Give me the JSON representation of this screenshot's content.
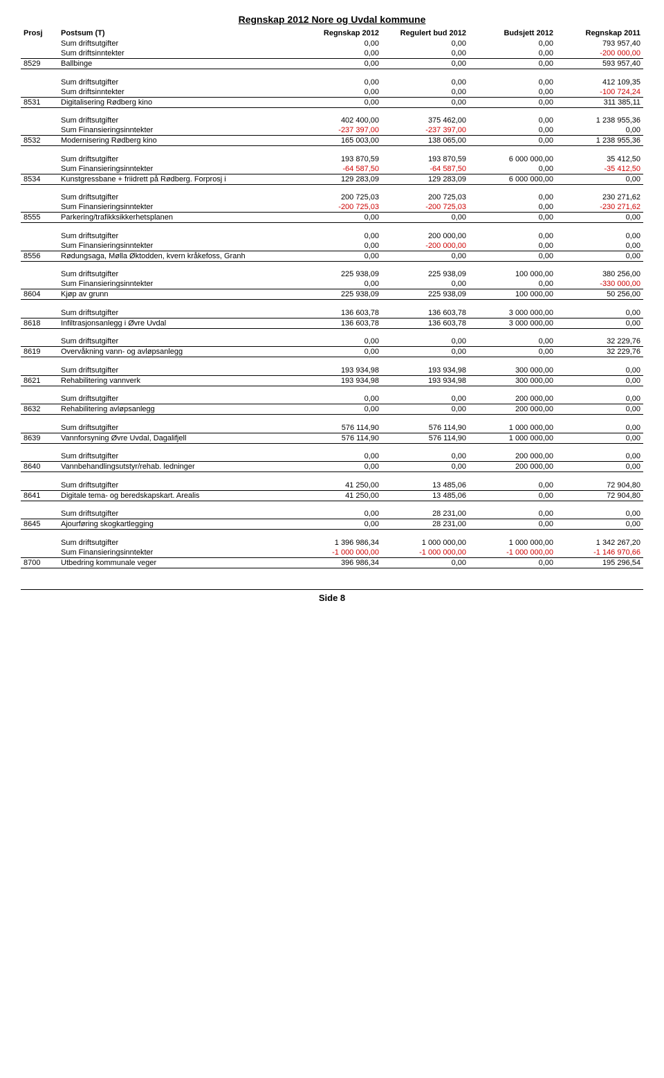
{
  "title": "Regnskap 2012 Nore og Uvdal kommune",
  "footer": "Side 8",
  "columns": {
    "prosj": "Prosj",
    "postsum": "Postsum (T)",
    "regnskap2012": "Regnskap 2012",
    "regulert": "Regulert bud 2012",
    "budsjett": "Budsjett 2012",
    "regnskap2011": "Regnskap 2011"
  },
  "labels": {
    "sd": "Sum driftsutgifter",
    "si": "Sum driftsinntekter",
    "sf": "Sum Finansieringsinntekter"
  },
  "groups": [
    {
      "rows": [
        {
          "desc_key": "sd",
          "c3": "0,00",
          "c4": "0,00",
          "c5": "0,00",
          "c6": "793 957,40"
        },
        {
          "desc_key": "si",
          "c3": "0,00",
          "c4": "0,00",
          "c5": "0,00",
          "c6": "-200 000,00",
          "c6neg": true,
          "bb": true
        }
      ],
      "total": {
        "prosj": "8529",
        "desc": "Ballbinge",
        "c3": "0,00",
        "c4": "0,00",
        "c5": "0,00",
        "c6": "593 957,40",
        "bb": true
      }
    },
    {
      "rows": [
        {
          "desc_key": "sd",
          "c3": "0,00",
          "c4": "0,00",
          "c5": "0,00",
          "c6": "412 109,35"
        },
        {
          "desc_key": "si",
          "c3": "0,00",
          "c4": "0,00",
          "c5": "0,00",
          "c6": "-100 724,24",
          "c6neg": true,
          "bb": true
        }
      ],
      "total": {
        "prosj": "8531",
        "desc": "Digitalisering Rødberg kino",
        "c3": "0,00",
        "c4": "0,00",
        "c5": "0,00",
        "c6": "311 385,11",
        "bb": true
      }
    },
    {
      "rows": [
        {
          "desc_key": "sd",
          "c3": "402 400,00",
          "c4": "375 462,00",
          "c5": "0,00",
          "c6": "1 238 955,36"
        },
        {
          "desc_key": "sf",
          "c3": "-237 397,00",
          "c3neg": true,
          "c4": "-237 397,00",
          "c4neg": true,
          "c5": "0,00",
          "c6": "0,00",
          "bb": true
        }
      ],
      "total": {
        "prosj": "8532",
        "desc": "Modernisering Rødberg kino",
        "c3": "165 003,00",
        "c4": "138 065,00",
        "c5": "0,00",
        "c6": "1 238 955,36",
        "bb": true
      }
    },
    {
      "rows": [
        {
          "desc_key": "sd",
          "c3": "193 870,59",
          "c4": "193 870,59",
          "c5": "6 000 000,00",
          "c6": "35 412,50"
        },
        {
          "desc_key": "sf",
          "c3": "-64 587,50",
          "c3neg": true,
          "c4": "-64 587,50",
          "c4neg": true,
          "c5": "0,00",
          "c6": "-35 412,50",
          "c6neg": true,
          "bb": true
        }
      ],
      "total": {
        "prosj": "8534",
        "desc": "Kunstgressbane + friidrett på Rødberg. Forprosj i",
        "c3": "129 283,09",
        "c4": "129 283,09",
        "c5": "6 000 000,00",
        "c6": "0,00",
        "bb": true
      }
    },
    {
      "rows": [
        {
          "desc_key": "sd",
          "c3": "200 725,03",
          "c4": "200 725,03",
          "c5": "0,00",
          "c6": "230 271,62"
        },
        {
          "desc_key": "sf",
          "c3": "-200 725,03",
          "c3neg": true,
          "c4": "-200 725,03",
          "c4neg": true,
          "c5": "0,00",
          "c6": "-230 271,62",
          "c6neg": true,
          "bb": true
        }
      ],
      "total": {
        "prosj": "8555",
        "desc": "Parkering/trafikksikkerhetsplanen",
        "c3": "0,00",
        "c4": "0,00",
        "c5": "0,00",
        "c6": "0,00",
        "bb": true
      }
    },
    {
      "rows": [
        {
          "desc_key": "sd",
          "c3": "0,00",
          "c4": "200 000,00",
          "c5": "0,00",
          "c6": "0,00"
        },
        {
          "desc_key": "sf",
          "c3": "0,00",
          "c4": "-200 000,00",
          "c4neg": true,
          "c5": "0,00",
          "c6": "0,00",
          "bb": true
        }
      ],
      "total": {
        "prosj": "8556",
        "desc": "Rødungsaga, Mølla Øktodden, kvern kråkefoss, Granh",
        "c3": "0,00",
        "c4": "0,00",
        "c5": "0,00",
        "c6": "0,00",
        "bb": true
      }
    },
    {
      "rows": [
        {
          "desc_key": "sd",
          "c3": "225 938,09",
          "c4": "225 938,09",
          "c5": "100 000,00",
          "c6": "380 256,00"
        },
        {
          "desc_key": "sf",
          "c3": "0,00",
          "c4": "0,00",
          "c5": "0,00",
          "c6": "-330 000,00",
          "c6neg": true,
          "bb": true
        }
      ],
      "total": {
        "prosj": "8604",
        "desc": "Kjøp av grunn",
        "c3": "225 938,09",
        "c4": "225 938,09",
        "c5": "100 000,00",
        "c6": "50 256,00",
        "bb": true
      }
    },
    {
      "rows": [
        {
          "desc_key": "sd",
          "c3": "136 603,78",
          "c4": "136 603,78",
          "c5": "3 000 000,00",
          "c6": "0,00",
          "bb": true
        }
      ],
      "total": {
        "prosj": "8618",
        "desc": "Infiltrasjonsanlegg i Øvre Uvdal",
        "c3": "136 603,78",
        "c4": "136 603,78",
        "c5": "3 000 000,00",
        "c6": "0,00",
        "bb": true
      }
    },
    {
      "rows": [
        {
          "desc_key": "sd",
          "c3": "0,00",
          "c4": "0,00",
          "c5": "0,00",
          "c6": "32 229,76",
          "bb": true
        }
      ],
      "total": {
        "prosj": "8619",
        "desc": "Overvåkning vann- og avløpsanlegg",
        "c3": "0,00",
        "c4": "0,00",
        "c5": "0,00",
        "c6": "32 229,76",
        "bb": true
      }
    },
    {
      "rows": [
        {
          "desc_key": "sd",
          "c3": "193 934,98",
          "c4": "193 934,98",
          "c5": "300 000,00",
          "c6": "0,00",
          "bb": true
        }
      ],
      "total": {
        "prosj": "8621",
        "desc": "Rehabilitering vannverk",
        "c3": "193 934,98",
        "c4": "193 934,98",
        "c5": "300 000,00",
        "c6": "0,00",
        "bb": true
      }
    },
    {
      "rows": [
        {
          "desc_key": "sd",
          "c3": "0,00",
          "c4": "0,00",
          "c5": "200 000,00",
          "c6": "0,00",
          "bb": true
        }
      ],
      "total": {
        "prosj": "8632",
        "desc": "Rehabilitering avløpsanlegg",
        "c3": "0,00",
        "c4": "0,00",
        "c5": "200 000,00",
        "c6": "0,00",
        "bb": true
      }
    },
    {
      "rows": [
        {
          "desc_key": "sd",
          "c3": "576 114,90",
          "c4": "576 114,90",
          "c5": "1 000 000,00",
          "c6": "0,00",
          "bb": true
        }
      ],
      "total": {
        "prosj": "8639",
        "desc": "Vannforsyning Øvre Uvdal, Dagalifjell",
        "c3": "576 114,90",
        "c4": "576 114,90",
        "c5": "1 000 000,00",
        "c6": "0,00",
        "bb": true
      }
    },
    {
      "rows": [
        {
          "desc_key": "sd",
          "c3": "0,00",
          "c4": "0,00",
          "c5": "200 000,00",
          "c6": "0,00",
          "bb": true
        }
      ],
      "total": {
        "prosj": "8640",
        "desc": "Vannbehandlingsutstyr/rehab. ledninger",
        "c3": "0,00",
        "c4": "0,00",
        "c5": "200 000,00",
        "c6": "0,00",
        "bb": true
      }
    },
    {
      "rows": [
        {
          "desc_key": "sd",
          "c3": "41 250,00",
          "c4": "13 485,06",
          "c5": "0,00",
          "c6": "72 904,80",
          "bb": true
        }
      ],
      "total": {
        "prosj": "8641",
        "desc": "Digitale tema- og beredskapskart. Arealis",
        "c3": "41 250,00",
        "c4": "13 485,06",
        "c5": "0,00",
        "c6": "72 904,80",
        "bb": true
      }
    },
    {
      "rows": [
        {
          "desc_key": "sd",
          "c3": "0,00",
          "c4": "28 231,00",
          "c5": "0,00",
          "c6": "0,00",
          "bb": true
        }
      ],
      "total": {
        "prosj": "8645",
        "desc": "Ajourføring skogkartlegging",
        "c3": "0,00",
        "c4": "28 231,00",
        "c5": "0,00",
        "c6": "0,00",
        "bb": true
      }
    },
    {
      "rows": [
        {
          "desc_key": "sd",
          "c3": "1 396 986,34",
          "c4": "1 000 000,00",
          "c5": "1 000 000,00",
          "c6": "1 342 267,20"
        },
        {
          "desc_key": "sf",
          "c3": "-1 000 000,00",
          "c3neg": true,
          "c4": "-1 000 000,00",
          "c4neg": true,
          "c5": "-1 000 000,00",
          "c5neg": true,
          "c6": "-1 146 970,66",
          "c6neg": true,
          "bb": true
        }
      ],
      "total": {
        "prosj": "8700",
        "desc": "Utbedring kommunale veger",
        "c3": "396 986,34",
        "c4": "0,00",
        "c5": "0,00",
        "c6": "195 296,54",
        "bb": true
      }
    }
  ]
}
